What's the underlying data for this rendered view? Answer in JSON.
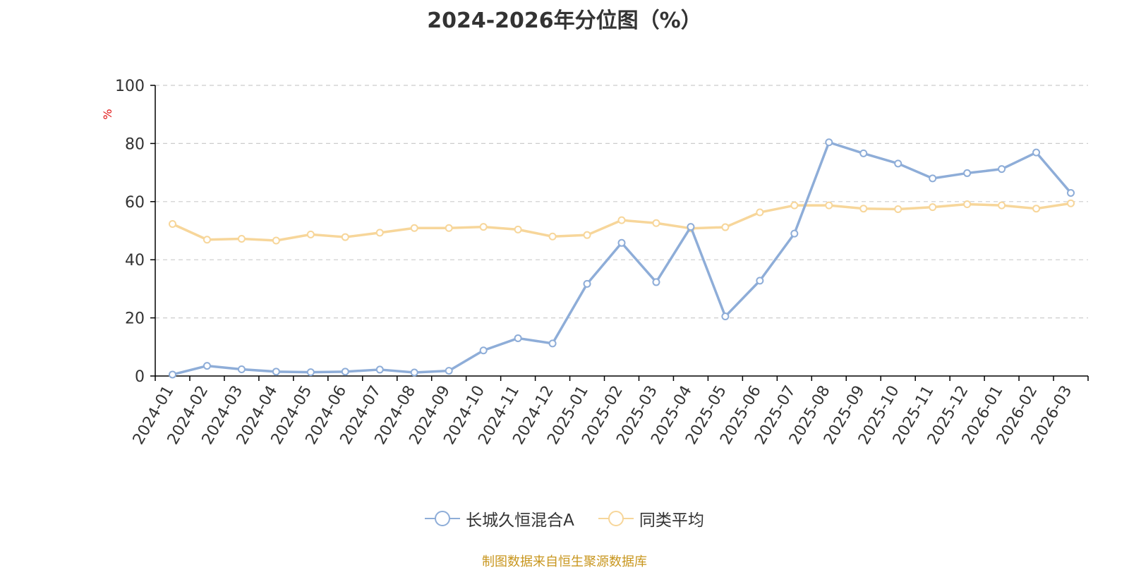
{
  "chart_data": {
    "type": "line",
    "title": "2024-2026年分位图（%）",
    "ylabel": "%",
    "xlabel": "",
    "ylim": [
      0,
      100
    ],
    "yticks": [
      0,
      20,
      40,
      60,
      80,
      100
    ],
    "grid": true,
    "legend_position": "bottom-center",
    "categories": [
      "2024-01",
      "2024-02",
      "2024-03",
      "2024-04",
      "2024-05",
      "2024-06",
      "2024-07",
      "2024-08",
      "2024-09",
      "2024-10",
      "2024-11",
      "2024-12",
      "2025-01",
      "2025-02",
      "2025-03",
      "2025-04",
      "2025-05",
      "2025-06",
      "2025-07",
      "2025-08",
      "2025-09",
      "2025-10",
      "2025-11",
      "2025-12",
      "2026-01",
      "2026-02",
      "2026-03"
    ],
    "series": [
      {
        "name": "长城久恒混合A",
        "color": "#8eadd8",
        "values": [
          0.5,
          3.5,
          2.3,
          1.5,
          1.3,
          1.5,
          2.2,
          1.2,
          1.8,
          8.8,
          13.0,
          11.2,
          31.7,
          45.8,
          32.3,
          51.3,
          20.5,
          32.8,
          49.0,
          80.4,
          76.6,
          73.1,
          68.0,
          69.8,
          71.2,
          76.9,
          63.0
        ]
      },
      {
        "name": "同类平均",
        "color": "#f7d69a",
        "values": [
          52.3,
          46.9,
          47.2,
          46.6,
          48.7,
          47.8,
          49.3,
          50.9,
          50.9,
          51.3,
          50.4,
          48.0,
          48.5,
          53.6,
          52.6,
          50.8,
          51.2,
          56.3,
          58.7,
          58.7,
          57.6,
          57.4,
          58.1,
          59.1,
          58.7,
          57.6,
          59.4
        ]
      }
    ]
  },
  "source_note": "制图数据来自恒生聚源数据库",
  "colors": {
    "axis": "#000000",
    "grid": "#cccccc",
    "ylabel": "#e01010",
    "source": "#c8961e"
  }
}
